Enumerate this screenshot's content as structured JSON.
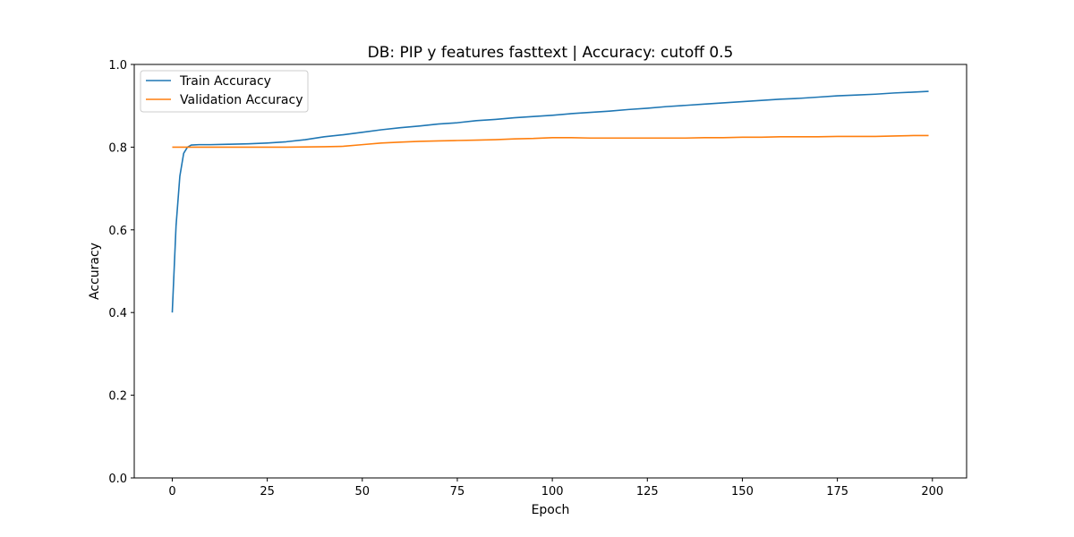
{
  "chart_data": {
    "type": "line",
    "title": "DB: PIP y features fasttext | Accuracy: cutoff 0.5",
    "xlabel": "Epoch",
    "ylabel": "Accuracy",
    "xlim": [
      -10,
      209
    ],
    "ylim": [
      0.0,
      1.0
    ],
    "xticks": [
      0,
      25,
      50,
      75,
      100,
      125,
      150,
      175,
      200
    ],
    "yticks": [
      0.0,
      0.2,
      0.4,
      0.6,
      0.8,
      1.0
    ],
    "xtick_labels": [
      "0",
      "25",
      "50",
      "75",
      "100",
      "125",
      "150",
      "175",
      "200"
    ],
    "ytick_labels": [
      "0.0",
      "0.2",
      "0.4",
      "0.6",
      "0.8",
      "1.0"
    ],
    "grid": false,
    "legend_position": "top-left",
    "series": [
      {
        "name": "Train Accuracy",
        "color": "#1f77b4",
        "points": [
          [
            0,
            0.4
          ],
          [
            1,
            0.61
          ],
          [
            2,
            0.73
          ],
          [
            3,
            0.785
          ],
          [
            4,
            0.8
          ],
          [
            5,
            0.805
          ],
          [
            7,
            0.806
          ],
          [
            10,
            0.806
          ],
          [
            15,
            0.807
          ],
          [
            20,
            0.808
          ],
          [
            25,
            0.81
          ],
          [
            30,
            0.813
          ],
          [
            35,
            0.818
          ],
          [
            40,
            0.825
          ],
          [
            45,
            0.83
          ],
          [
            50,
            0.836
          ],
          [
            55,
            0.842
          ],
          [
            60,
            0.847
          ],
          [
            65,
            0.851
          ],
          [
            70,
            0.856
          ],
          [
            75,
            0.859
          ],
          [
            80,
            0.864
          ],
          [
            85,
            0.867
          ],
          [
            90,
            0.871
          ],
          [
            95,
            0.874
          ],
          [
            100,
            0.877
          ],
          [
            105,
            0.881
          ],
          [
            110,
            0.884
          ],
          [
            115,
            0.887
          ],
          [
            120,
            0.891
          ],
          [
            125,
            0.894
          ],
          [
            130,
            0.898
          ],
          [
            135,
            0.901
          ],
          [
            140,
            0.904
          ],
          [
            145,
            0.907
          ],
          [
            150,
            0.91
          ],
          [
            155,
            0.913
          ],
          [
            160,
            0.916
          ],
          [
            165,
            0.918
          ],
          [
            170,
            0.921
          ],
          [
            175,
            0.924
          ],
          [
            180,
            0.926
          ],
          [
            185,
            0.928
          ],
          [
            190,
            0.931
          ],
          [
            195,
            0.933
          ],
          [
            199,
            0.935
          ]
        ]
      },
      {
        "name": "Validation Accuracy",
        "color": "#ff7f0e",
        "points": [
          [
            0,
            0.8
          ],
          [
            5,
            0.8
          ],
          [
            10,
            0.8
          ],
          [
            20,
            0.8
          ],
          [
            30,
            0.8
          ],
          [
            40,
            0.801
          ],
          [
            45,
            0.802
          ],
          [
            50,
            0.806
          ],
          [
            55,
            0.81
          ],
          [
            60,
            0.812
          ],
          [
            65,
            0.814
          ],
          [
            70,
            0.815
          ],
          [
            75,
            0.816
          ],
          [
            80,
            0.817
          ],
          [
            85,
            0.818
          ],
          [
            90,
            0.82
          ],
          [
            95,
            0.821
          ],
          [
            100,
            0.823
          ],
          [
            105,
            0.823
          ],
          [
            110,
            0.822
          ],
          [
            115,
            0.822
          ],
          [
            120,
            0.822
          ],
          [
            125,
            0.822
          ],
          [
            130,
            0.822
          ],
          [
            135,
            0.822
          ],
          [
            140,
            0.823
          ],
          [
            145,
            0.823
          ],
          [
            150,
            0.824
          ],
          [
            155,
            0.824
          ],
          [
            160,
            0.825
          ],
          [
            165,
            0.825
          ],
          [
            170,
            0.825
          ],
          [
            175,
            0.826
          ],
          [
            180,
            0.826
          ],
          [
            185,
            0.826
          ],
          [
            190,
            0.827
          ],
          [
            195,
            0.828
          ],
          [
            199,
            0.828
          ]
        ]
      }
    ]
  }
}
